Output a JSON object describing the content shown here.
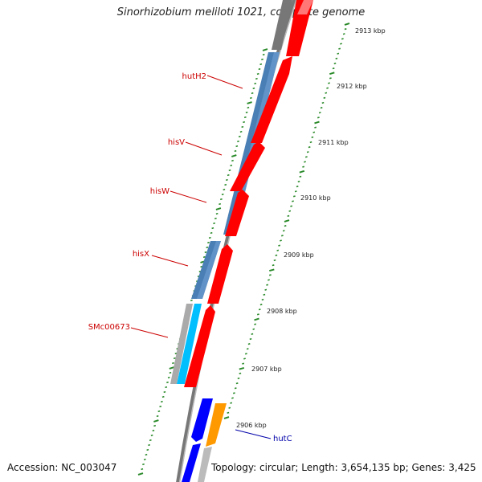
{
  "title": "Sinorhizobium meliloti 1021, complete genome",
  "footer": {
    "accession": "Accession: NC_003047",
    "topology": "Topology: circular; Length: 3,654,135 bp; Genes: 3,425"
  },
  "scale_labels": [
    "2913 kbp",
    "2912 kbp",
    "2911 kbp",
    "2910 kbp",
    "2909 kbp",
    "2908 kbp",
    "2907 kbp",
    "2906 kbp"
  ],
  "gene_labels": [
    {
      "name": "hutH2",
      "color": "#cc0000"
    },
    {
      "name": "hisV",
      "color": "#cc0000"
    },
    {
      "name": "hisW",
      "color": "#cc0000"
    },
    {
      "name": "hisX",
      "color": "#cc0000"
    },
    {
      "name": "SMc00673",
      "color": "#cc0000"
    },
    {
      "name": "hutC",
      "color": "#0000aa"
    }
  ],
  "colors": {
    "forward_gene": "#4a7fb5",
    "forward_gene_light": "#00bfff",
    "reverse_gene": "#ff0000",
    "reverse_gene_blue": "#0000ff",
    "orange_gene": "#ff9900",
    "pseudo_gene": "#aaaaaa",
    "backbone": "#888888",
    "scale_ticks": "#2a8a2a"
  }
}
